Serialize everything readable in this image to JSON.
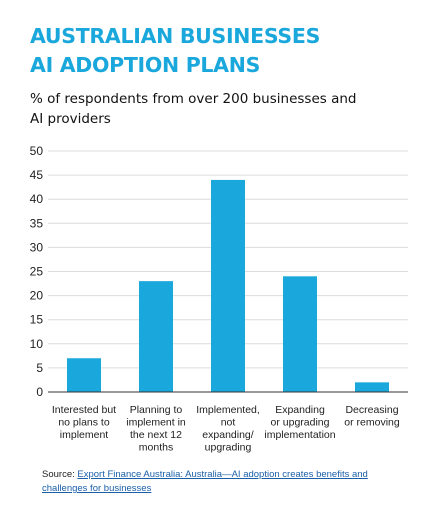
{
  "title_lines": [
    "AUSTRALIAN BUSINESSES",
    "AI ADOPTION PLANS"
  ],
  "subtitle_lines": [
    "% of respondents from over 200 businesses and",
    "AI providers"
  ],
  "source": {
    "prefix": "Source: ",
    "link_line1": "Export Finance Australia:  Australia—AI adoption creates benefits and",
    "link_line2": "challenges for businesses"
  },
  "colors": {
    "bar": "#1aa7dc",
    "title": "#1aa7dc",
    "grid": "#dcdcdc",
    "axis": "#333333"
  },
  "chart_data": {
    "type": "bar",
    "categories": [
      [
        "Interested but",
        "no plans to",
        "implement"
      ],
      [
        "Planning to",
        "implement in",
        "the next 12",
        "months"
      ],
      [
        "Implemented,",
        "not",
        "expanding/",
        "upgrading"
      ],
      [
        "Expanding",
        "or upgrading",
        "implementation"
      ],
      [
        "Decreasing",
        "or removing"
      ]
    ],
    "values": [
      7,
      23,
      44,
      24,
      2
    ],
    "ylim": [
      0,
      50
    ],
    "yticks": [
      "0",
      "5",
      "10",
      "15",
      "20",
      "25",
      "30",
      "35",
      "40",
      "45",
      "50"
    ],
    "grid": true,
    "legend": "none"
  }
}
